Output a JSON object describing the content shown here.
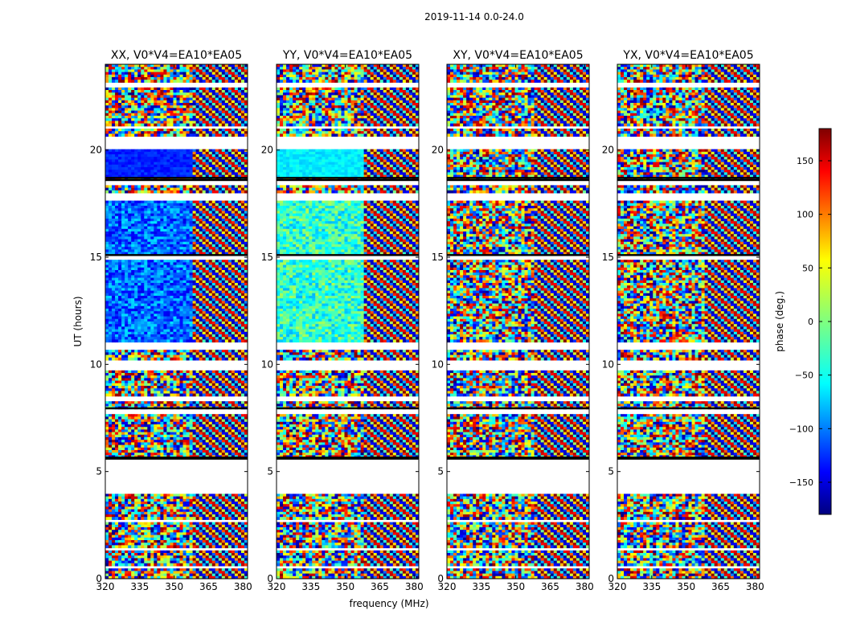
{
  "figure": {
    "suptitle": "2019-11-14 0.0-24.0",
    "xlabel": "frequency (MHz)",
    "ylabel": "UT (hours)"
  },
  "chart_data": {
    "type": "heatmap",
    "panels": [
      {
        "title": "XX, V0*V4=EA10*EA05"
      },
      {
        "title": "YY, V0*V4=EA10*EA05"
      },
      {
        "title": "XY, V0*V4=EA10*EA05"
      },
      {
        "title": "YX, V0*V4=EA10*EA05"
      }
    ],
    "xlim": [
      320,
      382
    ],
    "ylim": [
      0,
      24
    ],
    "xticks": [
      "320",
      "335",
      "350",
      "365",
      "380"
    ],
    "yticks": [
      "0",
      "5",
      "10",
      "15",
      "20"
    ],
    "colorbar": {
      "label": "phase (deg.)",
      "range": [
        -180,
        180
      ],
      "ticks": [
        "−150",
        "−100",
        "−50",
        "0",
        "50",
        "100",
        "150"
      ],
      "colormap": "jet"
    },
    "gaps_ut": [
      [
        0.5,
        0.6
      ],
      [
        1.3,
        1.4
      ],
      [
        2.6,
        2.8
      ],
      [
        4.0,
        5.6
      ],
      [
        7.7,
        7.95
      ],
      [
        8.3,
        8.5
      ],
      [
        9.7,
        10.2
      ],
      [
        10.7,
        11.0
      ],
      [
        14.9,
        15.1
      ],
      [
        17.7,
        18.0
      ],
      [
        18.4,
        18.6
      ],
      [
        20.1,
        20.6
      ],
      [
        20.95,
        21.1
      ],
      [
        22.9,
        23.1
      ]
    ],
    "separators_ut": [
      5.6,
      5.65,
      7.95,
      15.1,
      18.6,
      18.7
    ]
  }
}
